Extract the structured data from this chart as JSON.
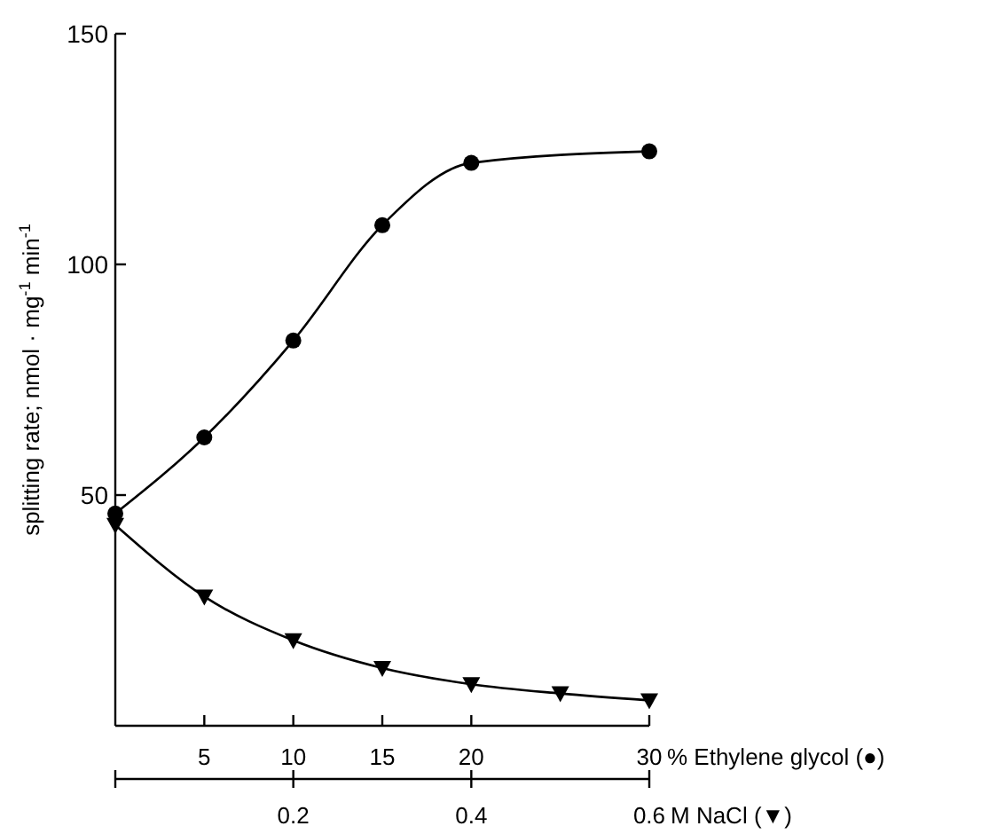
{
  "chart_data": {
    "type": "line",
    "xlabel": "% Ethylene glycol (●)",
    "x2label": "M NaCl (▼)",
    "ylabel": "splitting rate; nmol · mg$^{-1}$ min$^{-1}$",
    "xlim": [
      0,
      30
    ],
    "xticks": [
      5,
      10,
      15,
      20,
      30
    ],
    "x2lim": [
      0,
      0.6
    ],
    "x2ticks": [
      {
        "value": 0,
        "label": null
      },
      0.2,
      0.4,
      0.6
    ],
    "ylim": [
      0,
      150
    ],
    "yticks": [
      50,
      100,
      150
    ],
    "series": [
      {
        "x": [
          0,
          5,
          10,
          15,
          20,
          30
        ],
        "values": [
          46,
          62.5,
          83.5,
          108.5,
          122,
          124.5
        ],
        "color": "#000000",
        "marker": "circle"
      },
      {
        "x": [
          0,
          0.1,
          0.2,
          0.3,
          0.4,
          0.5,
          0.6
        ],
        "values": [
          43.5,
          28,
          18.5,
          12.5,
          9,
          7,
          5.5
        ],
        "color": "#000000",
        "marker": "triangle",
        "axis": "x2"
      }
    ]
  }
}
